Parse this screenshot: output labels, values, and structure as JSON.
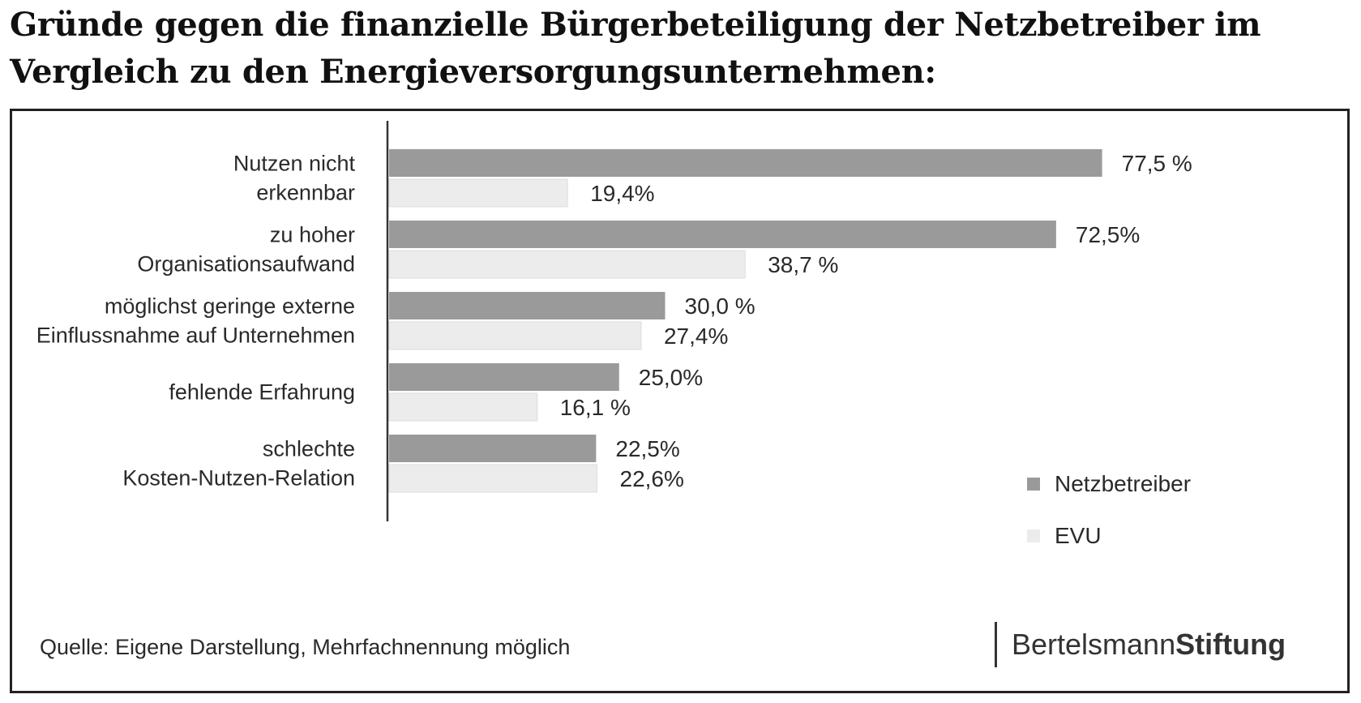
{
  "title": "Gründe gegen die finanzielle Bürgerbeteiligung der Netzbetreiber im Vergleich zu den Energieversorgungsunternehmen:",
  "chart_data": {
    "type": "bar",
    "orientation": "horizontal",
    "categories": [
      [
        "Nutzen nicht",
        "erkennbar"
      ],
      [
        "zu hoher",
        "Organisationsaufwand"
      ],
      [
        "möglichst geringe externe",
        "Einflussnahme auf Unternehmen"
      ],
      [
        "fehlende Erfahrung"
      ],
      [
        "schlechte",
        "Kosten-Nutzen-Relation"
      ]
    ],
    "series": [
      {
        "name": "Netzbetreiber",
        "color": "#9a9a9a",
        "values": [
          77.5,
          72.5,
          30.0,
          25.0,
          22.5
        ],
        "labels": [
          "77,5 %",
          "72,5%",
          "30,0 %",
          "25,0%",
          "22,5%"
        ]
      },
      {
        "name": "EVU",
        "color": "#ececec",
        "values": [
          19.4,
          38.7,
          27.4,
          16.1,
          22.6
        ],
        "labels": [
          "19,4%",
          "38,7 %",
          "27,4%",
          "16,1 %",
          "22,6%"
        ]
      }
    ],
    "xlim": [
      0,
      100
    ],
    "grid": false,
    "legend": "right"
  },
  "footer": {
    "source": "Quelle: Eigene Darstellung, Mehrfachnennung möglich",
    "brand_regular": "Bertelsmann",
    "brand_bold": "Stiftung"
  }
}
